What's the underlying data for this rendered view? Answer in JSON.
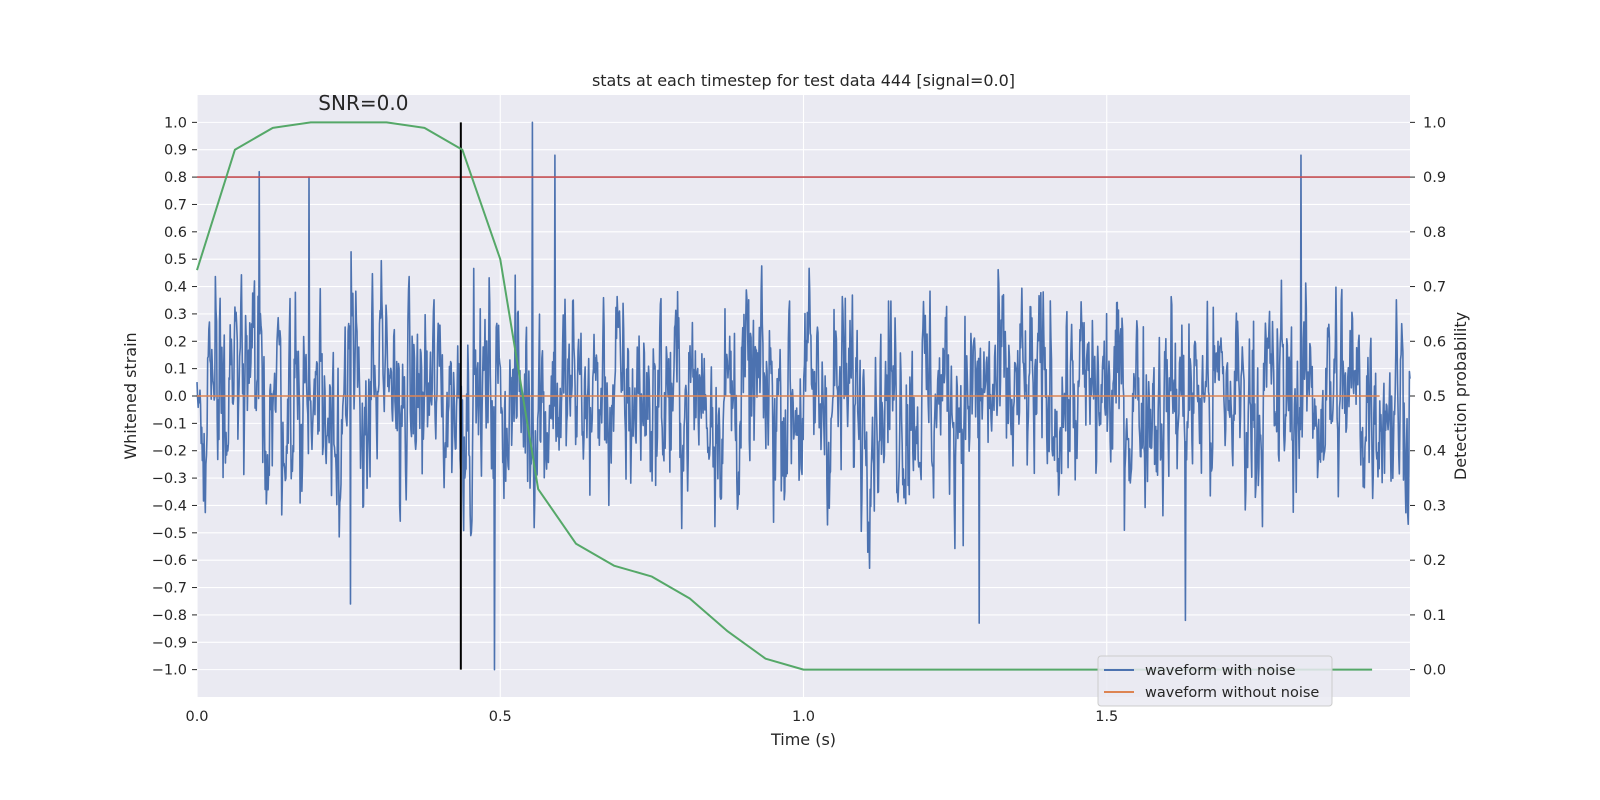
{
  "chart_data": {
    "type": "line",
    "title": "stats at each timestep for test data 444 [signal=0.0]",
    "xlabel": "Time (s)",
    "ylabel": "Whitened strain",
    "y2label": "Detection probability",
    "xlim": [
      0.0,
      2.0
    ],
    "ylim": [
      -1.1,
      1.1
    ],
    "y2lim": [
      -0.05,
      1.05
    ],
    "xticks": [
      0.0,
      0.5,
      1.0,
      1.5
    ],
    "xtick_labels": [
      "0.0",
      "0.5",
      "1.0",
      "1.5"
    ],
    "yticks": [
      1.0,
      0.9,
      0.8,
      0.7,
      0.6,
      0.5,
      0.4,
      0.3,
      0.2,
      0.1,
      0.0,
      -0.1,
      -0.2,
      -0.3,
      -0.4,
      -0.5,
      -0.6,
      -0.7,
      -0.8,
      -0.9,
      -1.0
    ],
    "ytick_labels": [
      "1.0",
      "0.9",
      "0.8",
      "0.7",
      "0.6",
      "0.5",
      "0.4",
      "0.3",
      "0.2",
      "0.1",
      "0.0",
      "−0.1",
      "−0.2",
      "−0.3",
      "−0.4",
      "−0.5",
      "−0.6",
      "−0.7",
      "−0.8",
      "−0.9",
      "−1.0"
    ],
    "y2ticks": [
      1.0,
      0.9,
      0.8,
      0.7,
      0.6,
      0.5,
      0.4,
      0.3,
      0.2,
      0.1,
      0.0
    ],
    "y2tick_labels": [
      "1.0",
      "0.9",
      "0.8",
      "0.7",
      "0.6",
      "0.5",
      "0.4",
      "0.3",
      "0.2",
      "0.1",
      "0.0"
    ],
    "grid": true,
    "legend": {
      "location": "lower-right",
      "entries": [
        {
          "label": "waveform with noise",
          "color": "#4c72b0"
        },
        {
          "label": "waveform without noise",
          "color": "#dd8452"
        }
      ]
    },
    "series": [
      {
        "name": "waveform with noise",
        "axis": "left",
        "color": "#4c72b0",
        "kind": "noise",
        "n_samples": 2048,
        "typical_amplitude": 0.45,
        "peaks": [
          {
            "x": 0.103,
            "y": 0.82
          },
          {
            "x": 0.185,
            "y": 0.8
          },
          {
            "x": 0.253,
            "y": -0.76
          },
          {
            "x": 0.49,
            "y": -1.0
          },
          {
            "x": 0.553,
            "y": 1.0
          },
          {
            "x": 0.59,
            "y": 0.88
          },
          {
            "x": 1.29,
            "y": -0.83
          },
          {
            "x": 1.63,
            "y": -0.82
          },
          {
            "x": 1.82,
            "y": 0.88
          }
        ]
      },
      {
        "name": "waveform without noise",
        "axis": "left",
        "color": "#dd8452",
        "x": [
          0.0,
          1.95
        ],
        "y": [
          0.0,
          0.0
        ]
      },
      {
        "name": "detection probability",
        "axis": "right",
        "color": "#55a868",
        "x": [
          0.0,
          0.0625,
          0.125,
          0.1875,
          0.25,
          0.3125,
          0.375,
          0.4375,
          0.5,
          0.5625,
          0.625,
          0.6875,
          0.75,
          0.8125,
          0.875,
          0.9375,
          1.0,
          1.0625,
          1.125,
          1.1875,
          1.25,
          1.3125,
          1.375,
          1.4375,
          1.5,
          1.5625,
          1.625,
          1.6875,
          1.75,
          1.8125,
          1.875,
          1.9375
        ],
        "y": [
          0.73,
          0.95,
          0.99,
          1.0,
          1.0,
          1.0,
          0.99,
          0.95,
          0.75,
          0.33,
          0.23,
          0.19,
          0.17,
          0.13,
          0.07,
          0.02,
          0.0,
          0.0,
          0.0,
          0.0,
          0.0,
          0.0,
          0.0,
          0.0,
          0.0,
          0.0,
          0.0,
          0.0,
          0.0,
          0.0,
          0.0,
          0.0
        ]
      }
    ],
    "hlines": [
      {
        "name": "threshold",
        "axis": "left",
        "y": 0.8,
        "color": "#c44e52"
      }
    ],
    "vlines": [
      {
        "name": "marker",
        "x": 0.435,
        "ymin": -1.0,
        "ymax": 1.0,
        "color": "#000000"
      }
    ],
    "annotations": [
      {
        "text": "SNR=0.0",
        "x": 0.2,
        "y": 1.03
      }
    ]
  }
}
